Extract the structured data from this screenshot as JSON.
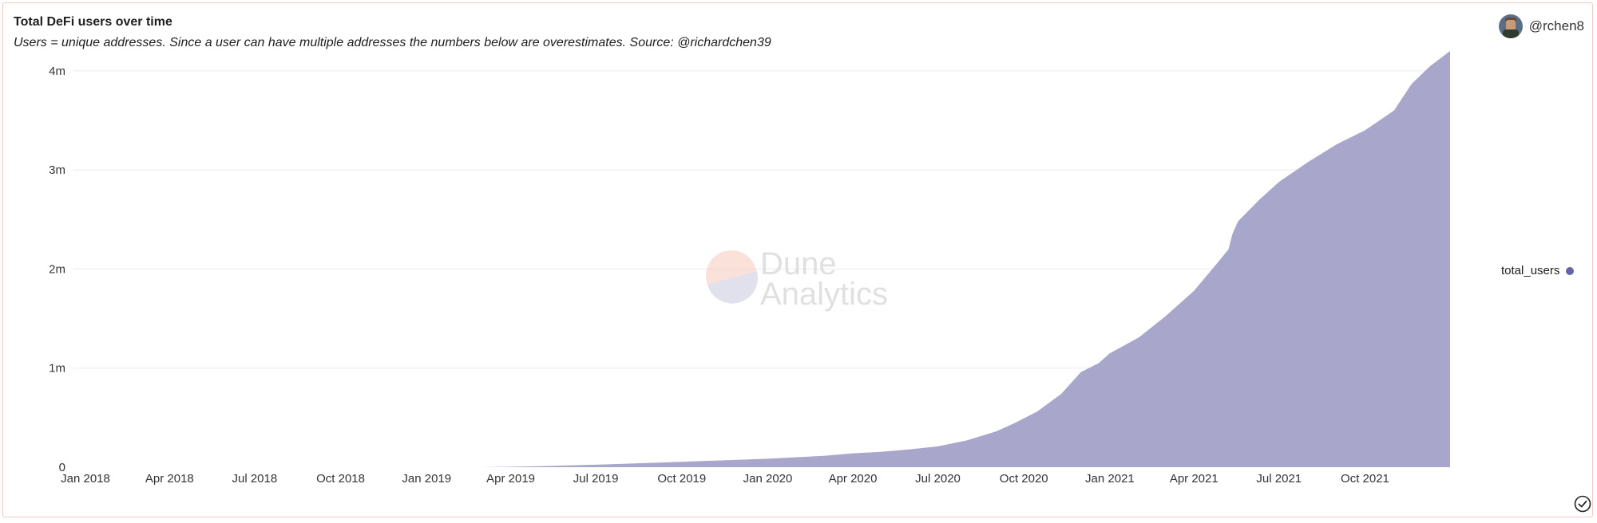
{
  "header": {
    "title": "Total DeFi users over time",
    "subtitle": "Users = unique addresses. Since a user can have multiple addresses the numbers below are overestimates. Source: @richardchen39"
  },
  "user": {
    "handle": "@rchen8"
  },
  "watermark": {
    "line1": "Dune",
    "line2": "Analytics"
  },
  "colors": {
    "area": "#a8a7cb",
    "accent": "#6463a8",
    "grid": "#ececec",
    "border": "#f2c9c0"
  },
  "chart_data": {
    "type": "area",
    "title": "Total DeFi users over time",
    "series_name": "total_users",
    "legend_position": "right",
    "grid": true,
    "y_ticks": [
      "0",
      "1m",
      "2m",
      "3m",
      "4m"
    ],
    "ylim": [
      0,
      4200000
    ],
    "xlim": [
      "2018-01-01",
      "2021-12-31"
    ],
    "x_ticks": [
      {
        "date": "2018-01-01",
        "label": "Jan 2018"
      },
      {
        "date": "2018-04-01",
        "label": "Apr 2018"
      },
      {
        "date": "2018-07-01",
        "label": "Jul 2018"
      },
      {
        "date": "2018-10-01",
        "label": "Oct 2018"
      },
      {
        "date": "2019-01-01",
        "label": "Jan 2019"
      },
      {
        "date": "2019-04-01",
        "label": "Apr 2019"
      },
      {
        "date": "2019-07-01",
        "label": "Jul 2019"
      },
      {
        "date": "2019-10-01",
        "label": "Oct 2019"
      },
      {
        "date": "2020-01-01",
        "label": "Jan 2020"
      },
      {
        "date": "2020-04-01",
        "label": "Apr 2020"
      },
      {
        "date": "2020-07-01",
        "label": "Jul 2020"
      },
      {
        "date": "2020-10-01",
        "label": "Oct 2020"
      },
      {
        "date": "2021-01-01",
        "label": "Jan 2021"
      },
      {
        "date": "2021-04-01",
        "label": "Apr 2021"
      },
      {
        "date": "2021-07-01",
        "label": "Jul 2021"
      },
      {
        "date": "2021-10-01",
        "label": "Oct 2021"
      }
    ],
    "points": [
      [
        "2019-03-01",
        0
      ],
      [
        "2019-05-01",
        10000
      ],
      [
        "2019-07-01",
        25000
      ],
      [
        "2019-10-01",
        55000
      ],
      [
        "2020-01-01",
        85000
      ],
      [
        "2020-03-01",
        115000
      ],
      [
        "2020-04-01",
        140000
      ],
      [
        "2020-05-01",
        155000
      ],
      [
        "2020-06-01",
        180000
      ],
      [
        "2020-07-01",
        210000
      ],
      [
        "2020-08-01",
        270000
      ],
      [
        "2020-09-01",
        360000
      ],
      [
        "2020-09-20",
        440000
      ],
      [
        "2020-10-15",
        560000
      ],
      [
        "2020-11-10",
        740000
      ],
      [
        "2020-12-01",
        960000
      ],
      [
        "2020-12-20",
        1050000
      ],
      [
        "2021-01-01",
        1150000
      ],
      [
        "2021-02-01",
        1310000
      ],
      [
        "2021-03-01",
        1520000
      ],
      [
        "2021-04-01",
        1780000
      ],
      [
        "2021-04-25",
        2050000
      ],
      [
        "2021-05-08",
        2200000
      ],
      [
        "2021-05-12",
        2350000
      ],
      [
        "2021-05-18",
        2480000
      ],
      [
        "2021-06-10",
        2700000
      ],
      [
        "2021-07-01",
        2880000
      ],
      [
        "2021-08-01",
        3080000
      ],
      [
        "2021-09-01",
        3260000
      ],
      [
        "2021-10-01",
        3400000
      ],
      [
        "2021-11-01",
        3600000
      ],
      [
        "2021-11-20",
        3870000
      ],
      [
        "2021-12-10",
        4050000
      ],
      [
        "2021-12-31",
        4200000
      ]
    ]
  }
}
